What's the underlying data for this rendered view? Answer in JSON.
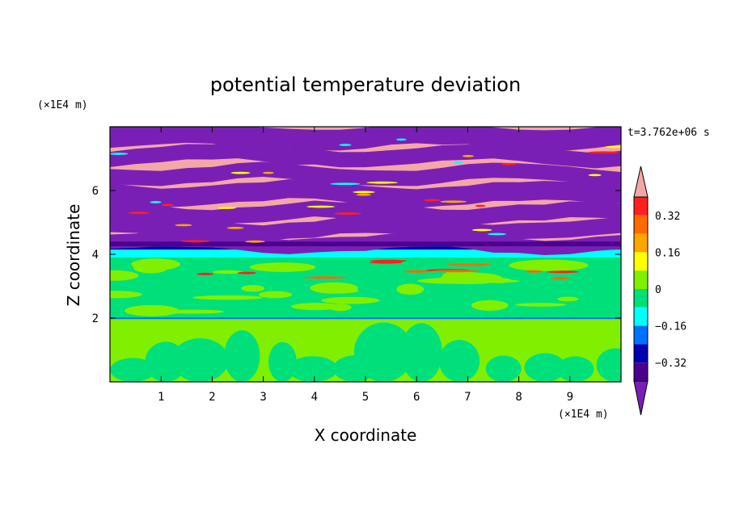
{
  "chart_data": {
    "type": "heatmap",
    "title": "potential temperature deviation",
    "xlabel": "X coordinate",
    "ylabel": "Z coordinate",
    "x_unit": "(×1E4 m)",
    "y_unit": "(×1E4 m)",
    "time_label": "t=3.762e+06 s",
    "xlim": [
      0,
      10
    ],
    "ylim": [
      0,
      8
    ],
    "x_ticks": [
      "1",
      "2",
      "3",
      "4",
      "5",
      "6",
      "7",
      "8",
      "9"
    ],
    "y_ticks": [
      "2",
      "4",
      "6"
    ],
    "colorbar": {
      "labels": [
        "0.32",
        "0.16",
        "0",
        "−0.16",
        "−0.32"
      ],
      "colors": [
        "#f4a7a7",
        "#ff2020",
        "#ff6a00",
        "#ffa500",
        "#ffff00",
        "#80f000",
        "#00e07a",
        "#00ffff",
        "#0070ff",
        "#0000b0",
        "#4b0090",
        "#7a1fb5"
      ],
      "extend": "both"
    },
    "layers": [
      {
        "z_range": [
          0,
          2
        ],
        "description_colors": [
          "#80f000",
          "#00e07a"
        ]
      },
      {
        "z_range": [
          2,
          3.9
        ],
        "description_colors": [
          "#00e07a",
          "#80f000"
        ]
      },
      {
        "z_range": [
          3.9,
          4.2
        ],
        "description_colors": [
          "#00ffff"
        ]
      },
      {
        "z_range": [
          4.2,
          8
        ],
        "description_colors": [
          "#f4a7a7",
          "#7a1fb5"
        ]
      }
    ]
  }
}
